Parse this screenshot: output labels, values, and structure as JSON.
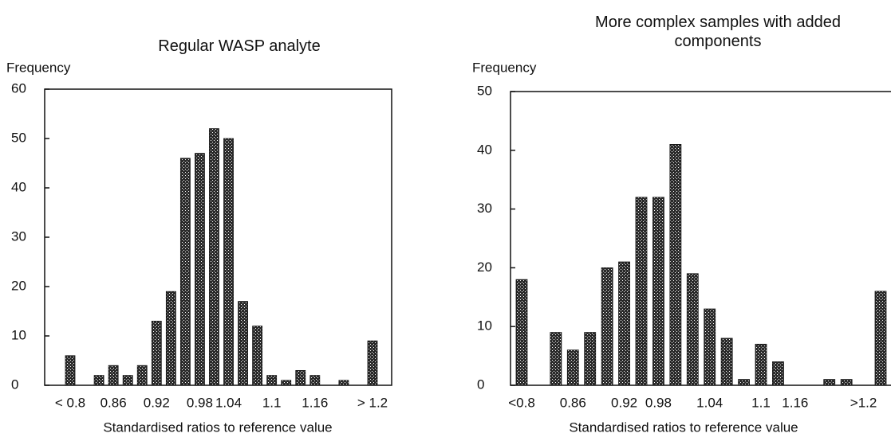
{
  "chart_data": [
    {
      "type": "bar",
      "title": "Regular WASP analyte",
      "ylabel": "Frequency",
      "xlabel": "Standardised ratios to reference value",
      "categories": [
        "< 0.8",
        null,
        null,
        "0.86",
        null,
        null,
        "0.92",
        null,
        null,
        "0.98",
        null,
        "1.04",
        null,
        null,
        "1.1",
        null,
        null,
        "1.16",
        null,
        null,
        null,
        "> 1.2"
      ],
      "values": [
        6,
        0,
        2,
        4,
        2,
        4,
        13,
        19,
        46,
        47,
        52,
        50,
        17,
        12,
        2,
        1,
        3,
        2,
        0,
        1,
        0,
        9
      ],
      "color": "#2a2a2a",
      "ylim": [
        0,
        60
      ],
      "yticks": [
        0,
        10,
        20,
        30,
        40,
        50,
        60
      ]
    },
    {
      "type": "bar",
      "title": "More complex samples with added components",
      "ylabel": "Frequency",
      "xlabel": "Standardised ratios to reference value",
      "categories": [
        "<0.8",
        null,
        null,
        "0.86",
        null,
        null,
        "0.92",
        null,
        "0.98",
        null,
        null,
        "1.04",
        null,
        null,
        "1.1",
        null,
        "1.16",
        null,
        null,
        null,
        ">1.2",
        null
      ],
      "values": [
        18,
        0,
        9,
        6,
        9,
        20,
        21,
        32,
        32,
        41,
        19,
        13,
        8,
        1,
        7,
        4,
        0,
        0,
        1,
        1,
        0,
        16
      ],
      "color": "#2a2a2a",
      "ylim": [
        0,
        50
      ],
      "yticks": [
        0,
        10,
        20,
        30,
        40,
        50
      ]
    }
  ]
}
